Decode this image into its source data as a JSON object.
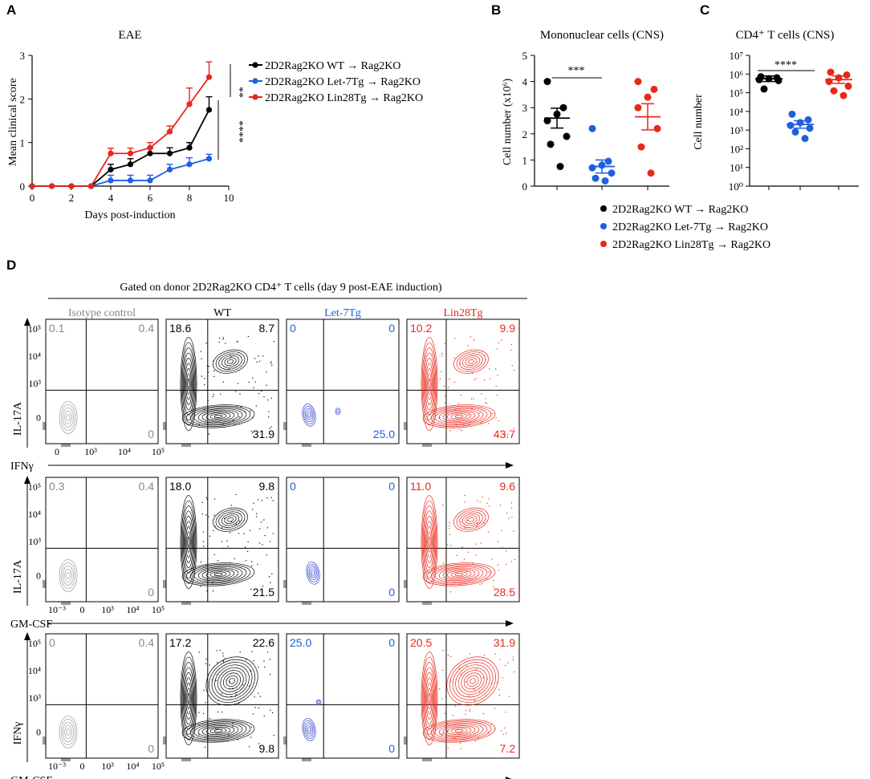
{
  "figure": {
    "panels": {
      "a": "A",
      "b": "B",
      "c": "C",
      "d": "D"
    }
  },
  "colors": {
    "black": "#000000",
    "blue": "#1f5fe0",
    "red": "#e8281b",
    "gray": "#888888",
    "blue_contour": "#3344cc",
    "red_contour": "#e8281b"
  },
  "chart_data": [
    {
      "id": "A",
      "type": "line",
      "title": "EAE",
      "xlabel": "Days post-induction",
      "ylabel": "Mean clinical score",
      "xlim": [
        0,
        10
      ],
      "ylim": [
        0,
        3
      ],
      "xticks": [
        0,
        2,
        4,
        6,
        8,
        10
      ],
      "yticks": [
        0,
        1,
        2,
        3
      ],
      "x": [
        0,
        1,
        2,
        3,
        4,
        5,
        6,
        7,
        8,
        9
      ],
      "series": [
        {
          "name": "2D2Rag2KO WT → Rag2KO",
          "color": "#000000",
          "values": [
            0,
            0,
            0,
            0,
            0.38,
            0.5,
            0.75,
            0.75,
            0.88,
            1.75
          ],
          "err": [
            0,
            0,
            0,
            0,
            0.12,
            0.13,
            0.13,
            0.13,
            0.12,
            0.3
          ]
        },
        {
          "name": "2D2Rag2KO Let-7Tg → Rag2KO",
          "color": "#1f5fe0",
          "values": [
            0,
            0,
            0,
            0,
            0.13,
            0.13,
            0.13,
            0.38,
            0.5,
            0.63
          ],
          "err": [
            0,
            0,
            0,
            0,
            0.12,
            0.12,
            0.12,
            0.12,
            0.15,
            0.1
          ]
        },
        {
          "name": "2D2Rag2KO Lin28Tg → Rag2KO",
          "color": "#e8281b",
          "values": [
            0,
            0,
            0,
            0,
            0.75,
            0.75,
            0.88,
            1.25,
            1.88,
            2.5
          ],
          "err": [
            0,
            0,
            0,
            0,
            0.12,
            0.12,
            0.12,
            0.13,
            0.37,
            0.35
          ]
        }
      ],
      "significance": [
        "**",
        "****"
      ]
    },
    {
      "id": "B",
      "type": "scatter",
      "title": "Mononuclear cells (CNS)",
      "ylabel": "Cell number (x10⁶)",
      "ylim": [
        0,
        5
      ],
      "yticks": [
        0,
        1,
        2,
        3,
        4,
        5
      ],
      "groups": [
        {
          "name": "WT",
          "color": "#000000",
          "points": [
            4.0,
            3.0,
            2.75,
            2.5,
            1.9,
            1.6,
            0.75
          ],
          "mean": 2.6,
          "sem": 0.38
        },
        {
          "name": "Let-7Tg",
          "color": "#1f5fe0",
          "points": [
            2.2,
            0.95,
            0.8,
            0.7,
            0.5,
            0.3,
            0.2
          ],
          "mean": 0.75,
          "sem": 0.25
        },
        {
          "name": "Lin28Tg",
          "color": "#e8281b",
          "points": [
            4.0,
            3.7,
            3.4,
            3.0,
            2.2,
            1.5,
            0.5
          ],
          "mean": 2.65,
          "sem": 0.5
        }
      ],
      "significance": "***"
    },
    {
      "id": "C",
      "type": "scatter",
      "title": "CD4⁺ T cells (CNS)",
      "ylabel": "Cell number",
      "ylim_log10": [
        0,
        7
      ],
      "yticks_log10": [
        0,
        1,
        2,
        3,
        4,
        5,
        6,
        7
      ],
      "ytick_labels": [
        "10⁰",
        "10¹",
        "10²",
        "10³",
        "10⁴",
        "10⁵",
        "10⁶",
        "10⁷"
      ],
      "groups": [
        {
          "name": "WT",
          "color": "#000000",
          "points_log10": [
            5.85,
            5.8,
            5.75,
            5.7,
            5.65,
            5.2
          ],
          "mean_log10": 5.75,
          "sem_log10": 0.15
        },
        {
          "name": "Let-7Tg",
          "color": "#1f5fe0",
          "points_log10": [
            3.85,
            3.55,
            3.4,
            3.25,
            3.1,
            2.9,
            2.55
          ],
          "mean_log10": 3.3,
          "sem_log10": 0.2
        },
        {
          "name": "Lin28Tg",
          "color": "#e8281b",
          "points_log10": [
            6.1,
            5.95,
            5.8,
            5.6,
            5.35,
            5.1,
            4.85
          ],
          "mean_log10": 5.7,
          "sem_log10": 0.2
        }
      ],
      "significance": "****",
      "legend": [
        "2D2Rag2KO WT → Rag2KO",
        "2D2Rag2KO Let-7Tg → Rag2KO",
        "2D2Rag2KO Lin28Tg → Rag2KO"
      ]
    },
    {
      "id": "D",
      "type": "flow-cytometry",
      "title": "Gated on donor 2D2Rag2KO CD4⁺ T cells (day 9 post-EAE induction)",
      "columns": [
        {
          "label": "Isotype control",
          "color": "#888888"
        },
        {
          "label": "WT",
          "color": "#000000"
        },
        {
          "label": "Let-7Tg",
          "color": "#1f5fe0"
        },
        {
          "label": "Lin28Tg",
          "color": "#e8281b"
        }
      ],
      "rows": [
        {
          "ylabel": "IL-17A",
          "xlabel": "IFNγ",
          "yticks": [
            "10⁵",
            "10⁴",
            "10³",
            "0"
          ],
          "xticks": [
            "0",
            "10³",
            "10⁴",
            "10⁵"
          ],
          "quadrants": [
            [
              "0.1",
              "0.4",
              "0"
            ],
            [
              "18.6",
              "8.7",
              "31.9"
            ],
            [
              "0",
              "0",
              "25.0"
            ],
            [
              "10.2",
              "9.9",
              "43.7"
            ]
          ]
        },
        {
          "ylabel": "IL-17A",
          "xlabel": "GM-CSF",
          "yticks": [
            "10⁵",
            "10⁴",
            "10³",
            "0"
          ],
          "xticks": [
            "10⁻³",
            "0",
            "10³",
            "10⁴",
            "10⁵"
          ],
          "quadrants": [
            [
              "0.3",
              "0.4",
              "0"
            ],
            [
              "18.0",
              "9.8",
              "21.5"
            ],
            [
              "0",
              "0",
              "0"
            ],
            [
              "11.0",
              "9.6",
              "28.5"
            ]
          ]
        },
        {
          "ylabel": "IFNγ",
          "xlabel": "GM-CSF",
          "yticks": [
            "10⁵",
            "10⁴",
            "10³",
            "0"
          ],
          "xticks": [
            "10⁻³",
            "0",
            "10³",
            "10⁴",
            "10⁵"
          ],
          "quadrants": [
            [
              "0",
              "0.4",
              "0"
            ],
            [
              "17.2",
              "22.6",
              "9.8"
            ],
            [
              "25.0",
              "0",
              "0"
            ],
            [
              "20.5",
              "31.9",
              "7.2"
            ]
          ]
        }
      ]
    }
  ]
}
